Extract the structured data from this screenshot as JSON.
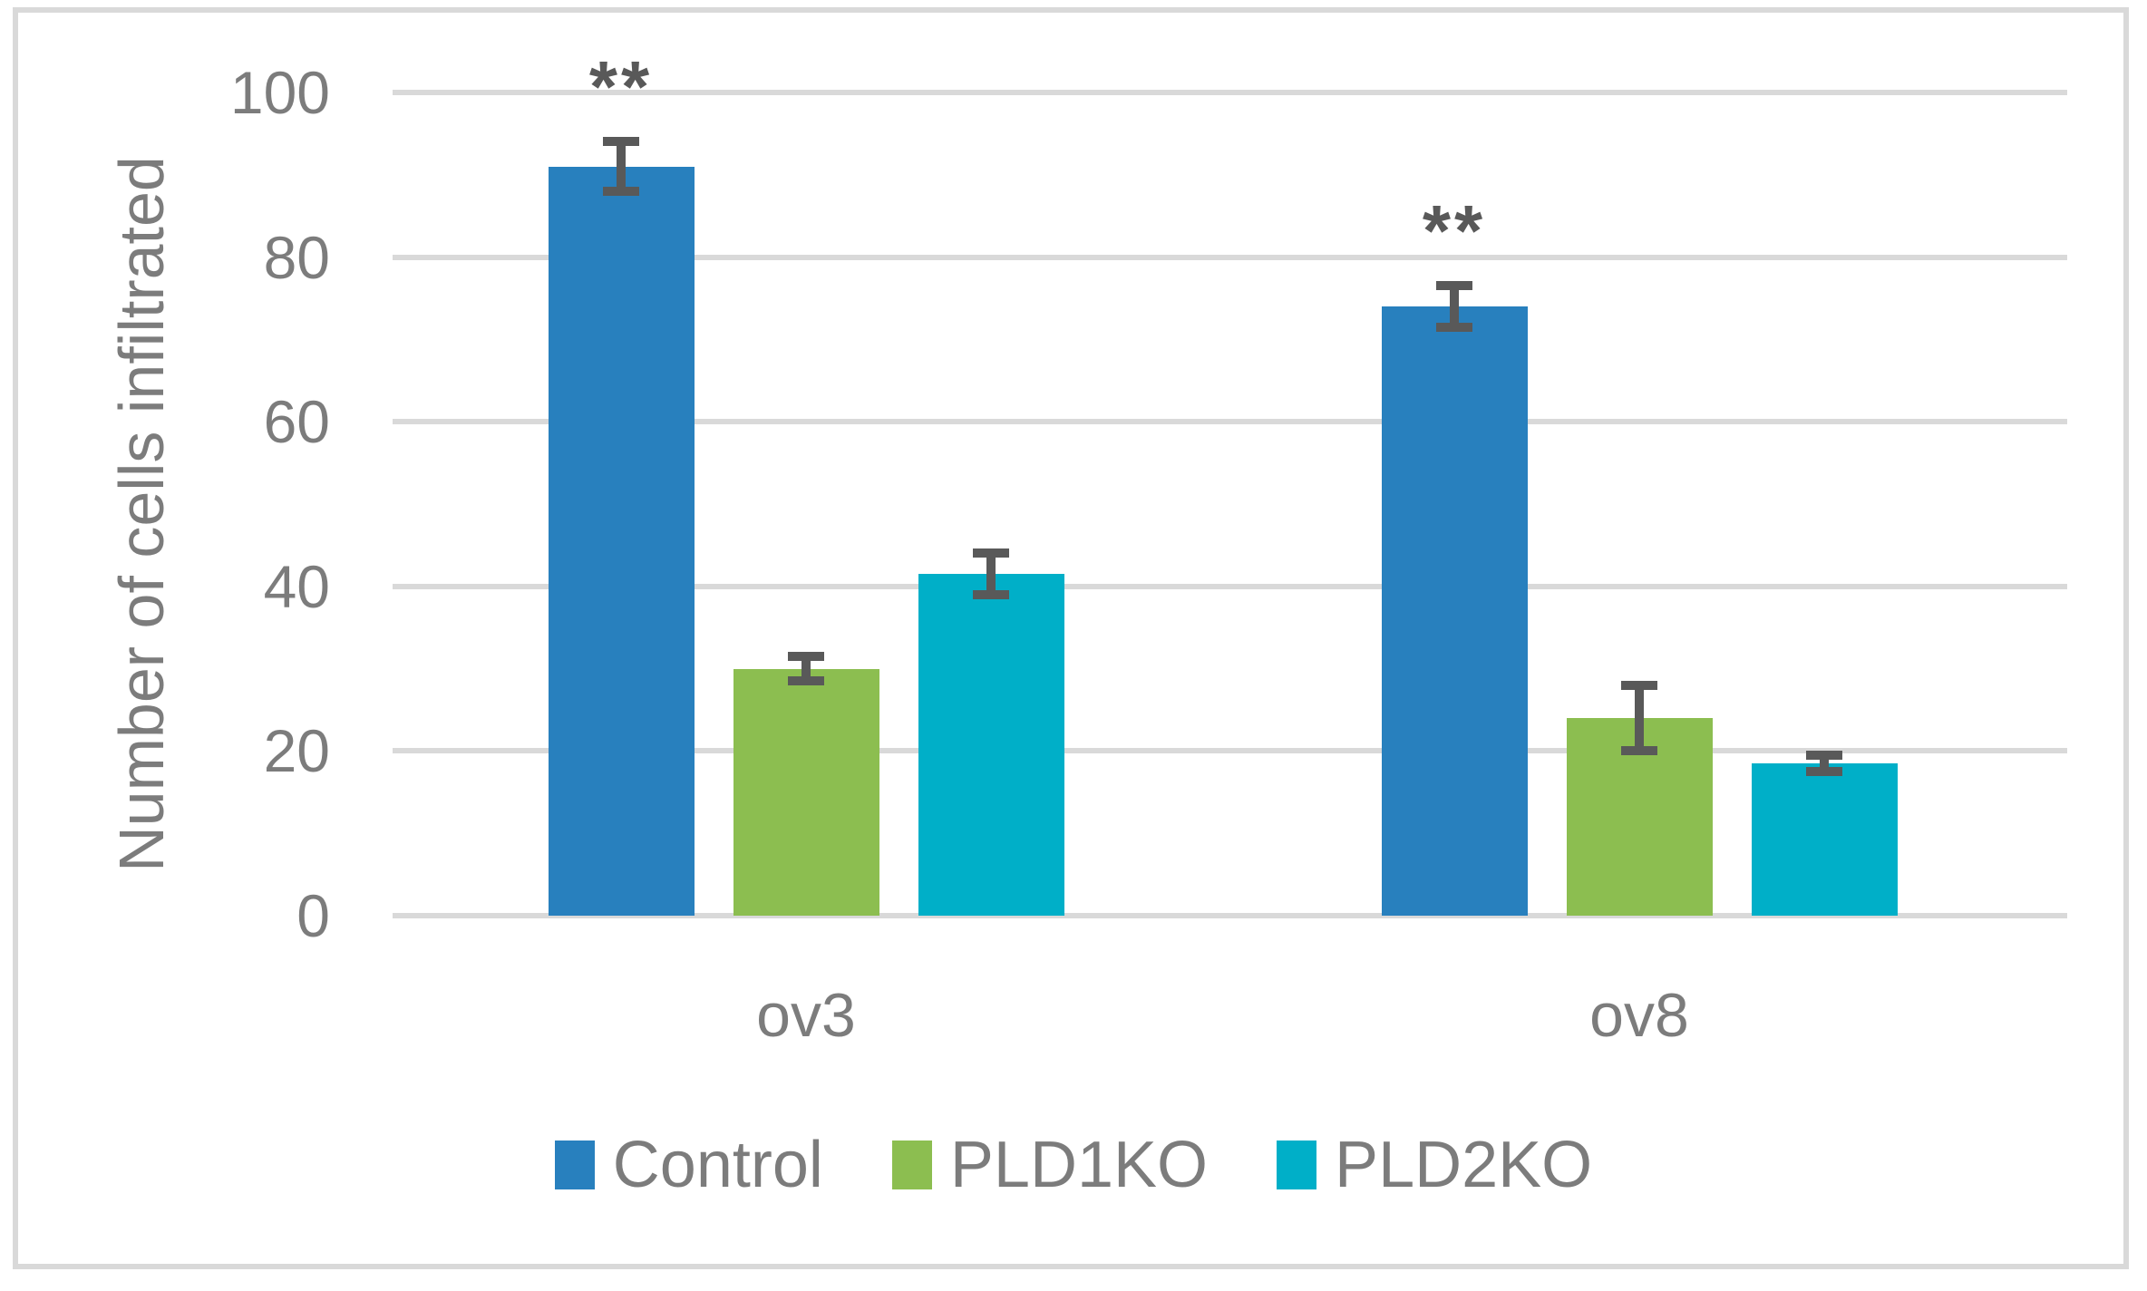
{
  "figure": {
    "background": "#FFFFFF",
    "border_color": "#D9D9D9"
  },
  "chart_data": {
    "type": "bar",
    "title": "",
    "xlabel": "",
    "ylabel": "Number of cells infiltrated",
    "ylim": [
      0,
      100
    ],
    "yticks": [
      0,
      20,
      40,
      60,
      80,
      100
    ],
    "grid": "horizontal gridlines on",
    "gridline_color": "#D9D9D9",
    "text_color": "#7C7C7C",
    "error_bar_color": "#595959",
    "legend_position": "bottom",
    "categories": [
      "ov3",
      "ov8"
    ],
    "series": [
      {
        "name": "Control",
        "color": "#2880BE",
        "values": [
          91,
          74
        ],
        "errors": [
          3,
          2.5
        ]
      },
      {
        "name": "PLD1KO",
        "color": "#8CBE50",
        "values": [
          30,
          24
        ],
        "errors": [
          1.5,
          4
        ]
      },
      {
        "name": "PLD2KO",
        "color": "#00AFC8",
        "values": [
          41.5,
          18.5
        ],
        "errors": [
          2.5,
          1
        ]
      }
    ],
    "annotations": [
      {
        "text": "**",
        "category": "ov3",
        "series": "Control"
      },
      {
        "text": "**",
        "category": "ov8",
        "series": "Control"
      }
    ]
  }
}
